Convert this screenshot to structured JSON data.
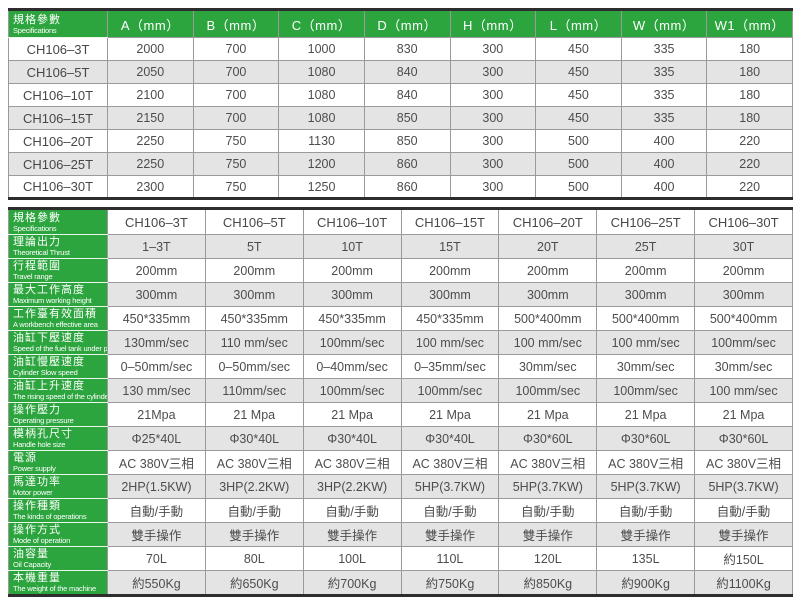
{
  "colors": {
    "accent_green": "#2ca53e",
    "alt_row_gray": "#e4e4e4",
    "grid_gray": "#9a9a9a",
    "frame_dark": "#2d2d2d",
    "text_gray": "#4d4d4d"
  },
  "table1": {
    "corner_zh": "規格參數",
    "corner_en": "Specifications",
    "columns": [
      "A（mm）",
      "B（mm）",
      "C（mm）",
      "D（mm）",
      "H（mm）",
      "L（mm）",
      "W（mm）",
      "W1（mm）"
    ],
    "rows": [
      {
        "model": "CH106–3T",
        "values": [
          "2000",
          "700",
          "1000",
          "830",
          "300",
          "450",
          "335",
          "180"
        ]
      },
      {
        "model": "CH106–5T",
        "values": [
          "2050",
          "700",
          "1080",
          "840",
          "300",
          "450",
          "335",
          "180"
        ]
      },
      {
        "model": "CH106–10T",
        "values": [
          "2100",
          "700",
          "1080",
          "840",
          "300",
          "450",
          "335",
          "180"
        ]
      },
      {
        "model": "CH106–15T",
        "values": [
          "2150",
          "700",
          "1080",
          "850",
          "300",
          "450",
          "335",
          "180"
        ]
      },
      {
        "model": "CH106–20T",
        "values": [
          "2250",
          "750",
          "1130",
          "850",
          "300",
          "500",
          "400",
          "220"
        ]
      },
      {
        "model": "CH106–25T",
        "values": [
          "2250",
          "750",
          "1200",
          "860",
          "300",
          "500",
          "400",
          "220"
        ]
      },
      {
        "model": "CH106–30T",
        "values": [
          "2300",
          "750",
          "1250",
          "860",
          "300",
          "500",
          "400",
          "220"
        ]
      }
    ]
  },
  "table2": {
    "corner_zh": "規格參數",
    "corner_en": "Specifications",
    "columns": [
      "CH106–3T",
      "CH106–5T",
      "CH106–10T",
      "CH106–15T",
      "CH106–20T",
      "CH106–25T",
      "CH106–30T"
    ],
    "rows": [
      {
        "zh": "理論出力",
        "en": "Theoretical Thrust",
        "values": [
          "1–3T",
          "5T",
          "10T",
          "15T",
          "20T",
          "25T",
          "30T"
        ]
      },
      {
        "zh": "行程範圍",
        "en": "Travel range",
        "values": [
          "200mm",
          "200mm",
          "200mm",
          "200mm",
          "200mm",
          "200mm",
          "200mm"
        ]
      },
      {
        "zh": "最大工作高度",
        "en": "Maximum working height",
        "values": [
          "300mm",
          "300mm",
          "300mm",
          "300mm",
          "300mm",
          "300mm",
          "300mm"
        ]
      },
      {
        "zh": "工作臺有效面積",
        "en": "A workbench effective area",
        "values": [
          "450*335mm",
          "450*335mm",
          "450*335mm",
          "450*335mm",
          "500*400mm",
          "500*400mm",
          "500*400mm"
        ]
      },
      {
        "zh": "油缸下壓速度",
        "en": "Speed of the fuel tank under pressure",
        "values": [
          "130mm/sec",
          "110 mm/sec",
          "100mm/sec",
          "100 mm/sec",
          "100 mm/sec",
          "100 mm/sec",
          "100mm/sec"
        ]
      },
      {
        "zh": "油缸慢壓速度",
        "en": "Cylinder Slow speed",
        "values": [
          "0–50mm/sec",
          "0–50mm/sec",
          "0–40mm/sec",
          "0–35mm/sec",
          "30mm/sec",
          "30mm/sec",
          "30mm/sec"
        ]
      },
      {
        "zh": "油缸上升速度",
        "en": "The rising speed of the cylinder",
        "values": [
          "130 mm/sec",
          "110mm/sec",
          "100mm/sec",
          "100mm/sec",
          "100mm/sec",
          "100mm/sec",
          "100 mm/sec"
        ]
      },
      {
        "zh": "操作壓力",
        "en": "Operating pressure",
        "values": [
          "21Mpa",
          "21 Mpa",
          "21 Mpa",
          "21 Mpa",
          "21 Mpa",
          "21 Mpa",
          "21 Mpa"
        ]
      },
      {
        "zh": "模柄孔尺寸",
        "en": "Handle hole size",
        "values": [
          "Φ25*40L",
          "Φ30*40L",
          "Φ30*40L",
          "Φ30*40L",
          "Φ30*60L",
          "Φ30*60L",
          "Φ30*60L"
        ]
      },
      {
        "zh": "電源",
        "en": "Power supply",
        "values": [
          "AC 380V三相",
          "AC 380V三相",
          "AC 380V三相",
          "AC 380V三相",
          "AC 380V三相",
          "AC 380V三相",
          "AC 380V三相"
        ]
      },
      {
        "zh": "馬達功率",
        "en": "Motor power",
        "values": [
          "2HP(1.5KW)",
          "3HP(2.2KW)",
          "3HP(2.2KW)",
          "5HP(3.7KW)",
          "5HP(3.7KW)",
          "5HP(3.7KW)",
          "5HP(3.7KW)"
        ]
      },
      {
        "zh": "操作種類",
        "en": "The kinds of operations",
        "values": [
          "自動/手動",
          "自動/手動",
          "自動/手動",
          "自動/手動",
          "自動/手動",
          "自動/手動",
          "自動/手動"
        ]
      },
      {
        "zh": "操作方式",
        "en": "Mode of operation",
        "values": [
          "雙手操作",
          "雙手操作",
          "雙手操作",
          "雙手操作",
          "雙手操作",
          "雙手操作",
          "雙手操作"
        ]
      },
      {
        "zh": "油容量",
        "en": "Oil Capacity",
        "values": [
          "70L",
          "80L",
          "100L",
          "110L",
          "120L",
          "135L",
          "約150L"
        ]
      },
      {
        "zh": "本機重量",
        "en": "The weight of the machine",
        "values": [
          "約550Kg",
          "約650Kg",
          "約700Kg",
          "約750Kg",
          "約850Kg",
          "約900Kg",
          "約1100Kg"
        ]
      }
    ]
  }
}
